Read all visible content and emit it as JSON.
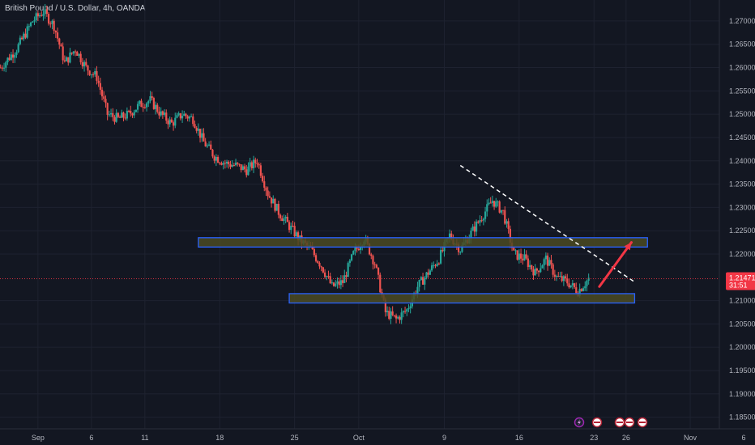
{
  "symbol": {
    "title": "British Pound / U.S. Dollar, 4h, OANDA"
  },
  "price_badge": {
    "price": "1.21471",
    "countdown": "31:51"
  },
  "colors": {
    "background": "#131722",
    "up": "#26a69a",
    "down": "#ef5350",
    "zone_fill": "#4b4a22",
    "zone_border": "#2962ff",
    "price_line": "#f23645",
    "arrow": "#f23645",
    "trendline": "#ffffff"
  },
  "chart_data": {
    "type": "candlestick",
    "title": "British Pound / U.S. Dollar, 4h, OANDA",
    "ylim": [
      1.1825,
      1.2745
    ],
    "xlim": [
      "Aug 30",
      "Nov 6"
    ],
    "y_ticks": [
      "1.27000",
      "1.26500",
      "1.26000",
      "1.25500",
      "1.25000",
      "1.24500",
      "1.24000",
      "1.23500",
      "1.23000",
      "1.22500",
      "1.22000",
      "1.21000",
      "1.20500",
      "1.20000",
      "1.19500",
      "1.19000",
      "1.18500"
    ],
    "x_ticks": [
      {
        "label": "Sep",
        "day": 1
      },
      {
        "label": "6",
        "day": 6
      },
      {
        "label": "11",
        "day": 11
      },
      {
        "label": "18",
        "day": 18
      },
      {
        "label": "25",
        "day": 25
      },
      {
        "label": "Oct",
        "day": 31
      },
      {
        "label": "9",
        "day": 39
      },
      {
        "label": "16",
        "day": 46
      },
      {
        "label": "23",
        "day": 53
      },
      {
        "label": "26",
        "day": 56
      },
      {
        "label": "Nov",
        "day": 62
      },
      {
        "label": "6",
        "day": 67
      }
    ],
    "current_price": 1.21471,
    "price_path": [
      {
        "day": -2.5,
        "price": 1.26
      },
      {
        "day": -1.0,
        "price": 1.264
      },
      {
        "day": 0.5,
        "price": 1.27
      },
      {
        "day": 1.5,
        "price": 1.272
      },
      {
        "day": 2.5,
        "price": 1.269
      },
      {
        "day": 3.5,
        "price": 1.261
      },
      {
        "day": 4.5,
        "price": 1.264
      },
      {
        "day": 5.5,
        "price": 1.26
      },
      {
        "day": 6.5,
        "price": 1.258
      },
      {
        "day": 7.5,
        "price": 1.25
      },
      {
        "day": 8.5,
        "price": 1.249
      },
      {
        "day": 9.5,
        "price": 1.25
      },
      {
        "day": 10.5,
        "price": 1.252
      },
      {
        "day": 11.5,
        "price": 1.253
      },
      {
        "day": 12.5,
        "price": 1.25
      },
      {
        "day": 13.5,
        "price": 1.248
      },
      {
        "day": 14.5,
        "price": 1.25
      },
      {
        "day": 15.5,
        "price": 1.249
      },
      {
        "day": 16.5,
        "price": 1.244
      },
      {
        "day": 17.5,
        "price": 1.241
      },
      {
        "day": 18.5,
        "price": 1.2395
      },
      {
        "day": 19.5,
        "price": 1.239
      },
      {
        "day": 20.5,
        "price": 1.238
      },
      {
        "day": 21.5,
        "price": 1.24
      },
      {
        "day": 22.5,
        "price": 1.233
      },
      {
        "day": 23.5,
        "price": 1.229
      },
      {
        "day": 24.5,
        "price": 1.226
      },
      {
        "day": 25.5,
        "price": 1.223
      },
      {
        "day": 26.5,
        "price": 1.221
      },
      {
        "day": 27.5,
        "price": 1.2175
      },
      {
        "day": 28.5,
        "price": 1.213
      },
      {
        "day": 29.5,
        "price": 1.214
      },
      {
        "day": 30.5,
        "price": 1.22
      },
      {
        "day": 31.5,
        "price": 1.2235
      },
      {
        "day": 32.5,
        "price": 1.218
      },
      {
        "day": 33.5,
        "price": 1.2075
      },
      {
        "day": 34.5,
        "price": 1.206
      },
      {
        "day": 35.5,
        "price": 1.208
      },
      {
        "day": 36.5,
        "price": 1.213
      },
      {
        "day": 37.5,
        "price": 1.216
      },
      {
        "day": 38.5,
        "price": 1.219
      },
      {
        "day": 39.5,
        "price": 1.224
      },
      {
        "day": 40.5,
        "price": 1.221
      },
      {
        "day": 41.5,
        "price": 1.2245
      },
      {
        "day": 42.5,
        "price": 1.228
      },
      {
        "day": 43.5,
        "price": 1.2315
      },
      {
        "day": 44.5,
        "price": 1.229
      },
      {
        "day": 45.5,
        "price": 1.22
      },
      {
        "day": 46.5,
        "price": 1.219
      },
      {
        "day": 47.5,
        "price": 1.216
      },
      {
        "day": 48.5,
        "price": 1.219
      },
      {
        "day": 49.5,
        "price": 1.215
      },
      {
        "day": 50.5,
        "price": 1.214
      },
      {
        "day": 51.5,
        "price": 1.212
      },
      {
        "day": 52.5,
        "price": 1.2147
      }
    ],
    "annotations": {
      "resistance_zone": {
        "price_top": 1.2235,
        "price_bottom": 1.2215,
        "day_start": 16.0,
        "day_end": 58.0
      },
      "support_zone": {
        "price_top": 1.2115,
        "price_bottom": 1.2095,
        "day_start": 24.5,
        "day_end": 56.8
      },
      "trendline": {
        "start": {
          "day": 40.5,
          "price": 1.239
        },
        "end": {
          "day": 56.8,
          "price": 1.214
        }
      },
      "arrow": {
        "start": {
          "day": 53.5,
          "price": 1.213
        },
        "end": {
          "day": 56.5,
          "price": 1.2225
        }
      }
    }
  },
  "event_icons": [
    "flash-icon",
    "gb-flag-icon",
    "us-flag-icon",
    "us-flag-icon",
    "us-flag-icon"
  ]
}
